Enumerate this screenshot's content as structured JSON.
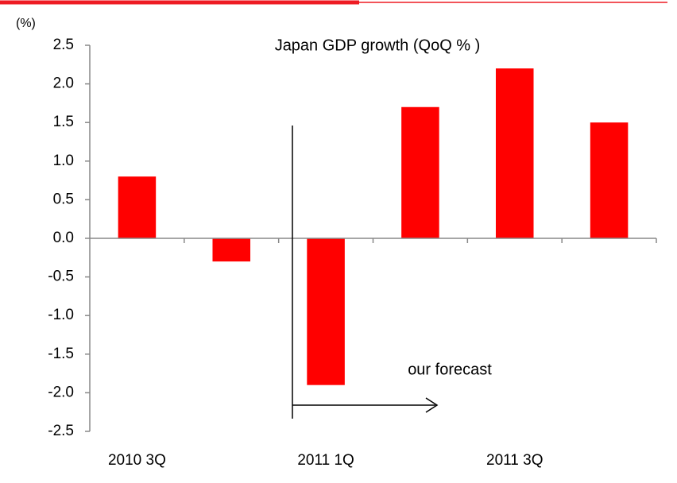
{
  "chart_data": {
    "type": "bar",
    "title": "Japan GDP growth (QoQ % )",
    "y_unit_label": "(%)",
    "annotation": "our forecast",
    "categories": [
      "2010 3Q",
      null,
      "2011 1Q",
      null,
      "2011 3Q",
      null
    ],
    "values": [
      0.8,
      -0.3,
      -1.9,
      1.7,
      2.2,
      1.5
    ],
    "color": "#ff0000",
    "ylim": [
      -2.5,
      2.5
    ],
    "yticks": [
      -2.5,
      {
        "value": -2,
        "label": "-2.0"
      },
      -1.5,
      {
        "value": -1,
        "label": "-1.0"
      },
      -0.5,
      {
        "value": 0,
        "label": "0.0"
      },
      0.5,
      {
        "value": 1,
        "label": "1.0"
      },
      1.5,
      {
        "value": 2,
        "label": "2.0"
      },
      2.5
    ]
  }
}
